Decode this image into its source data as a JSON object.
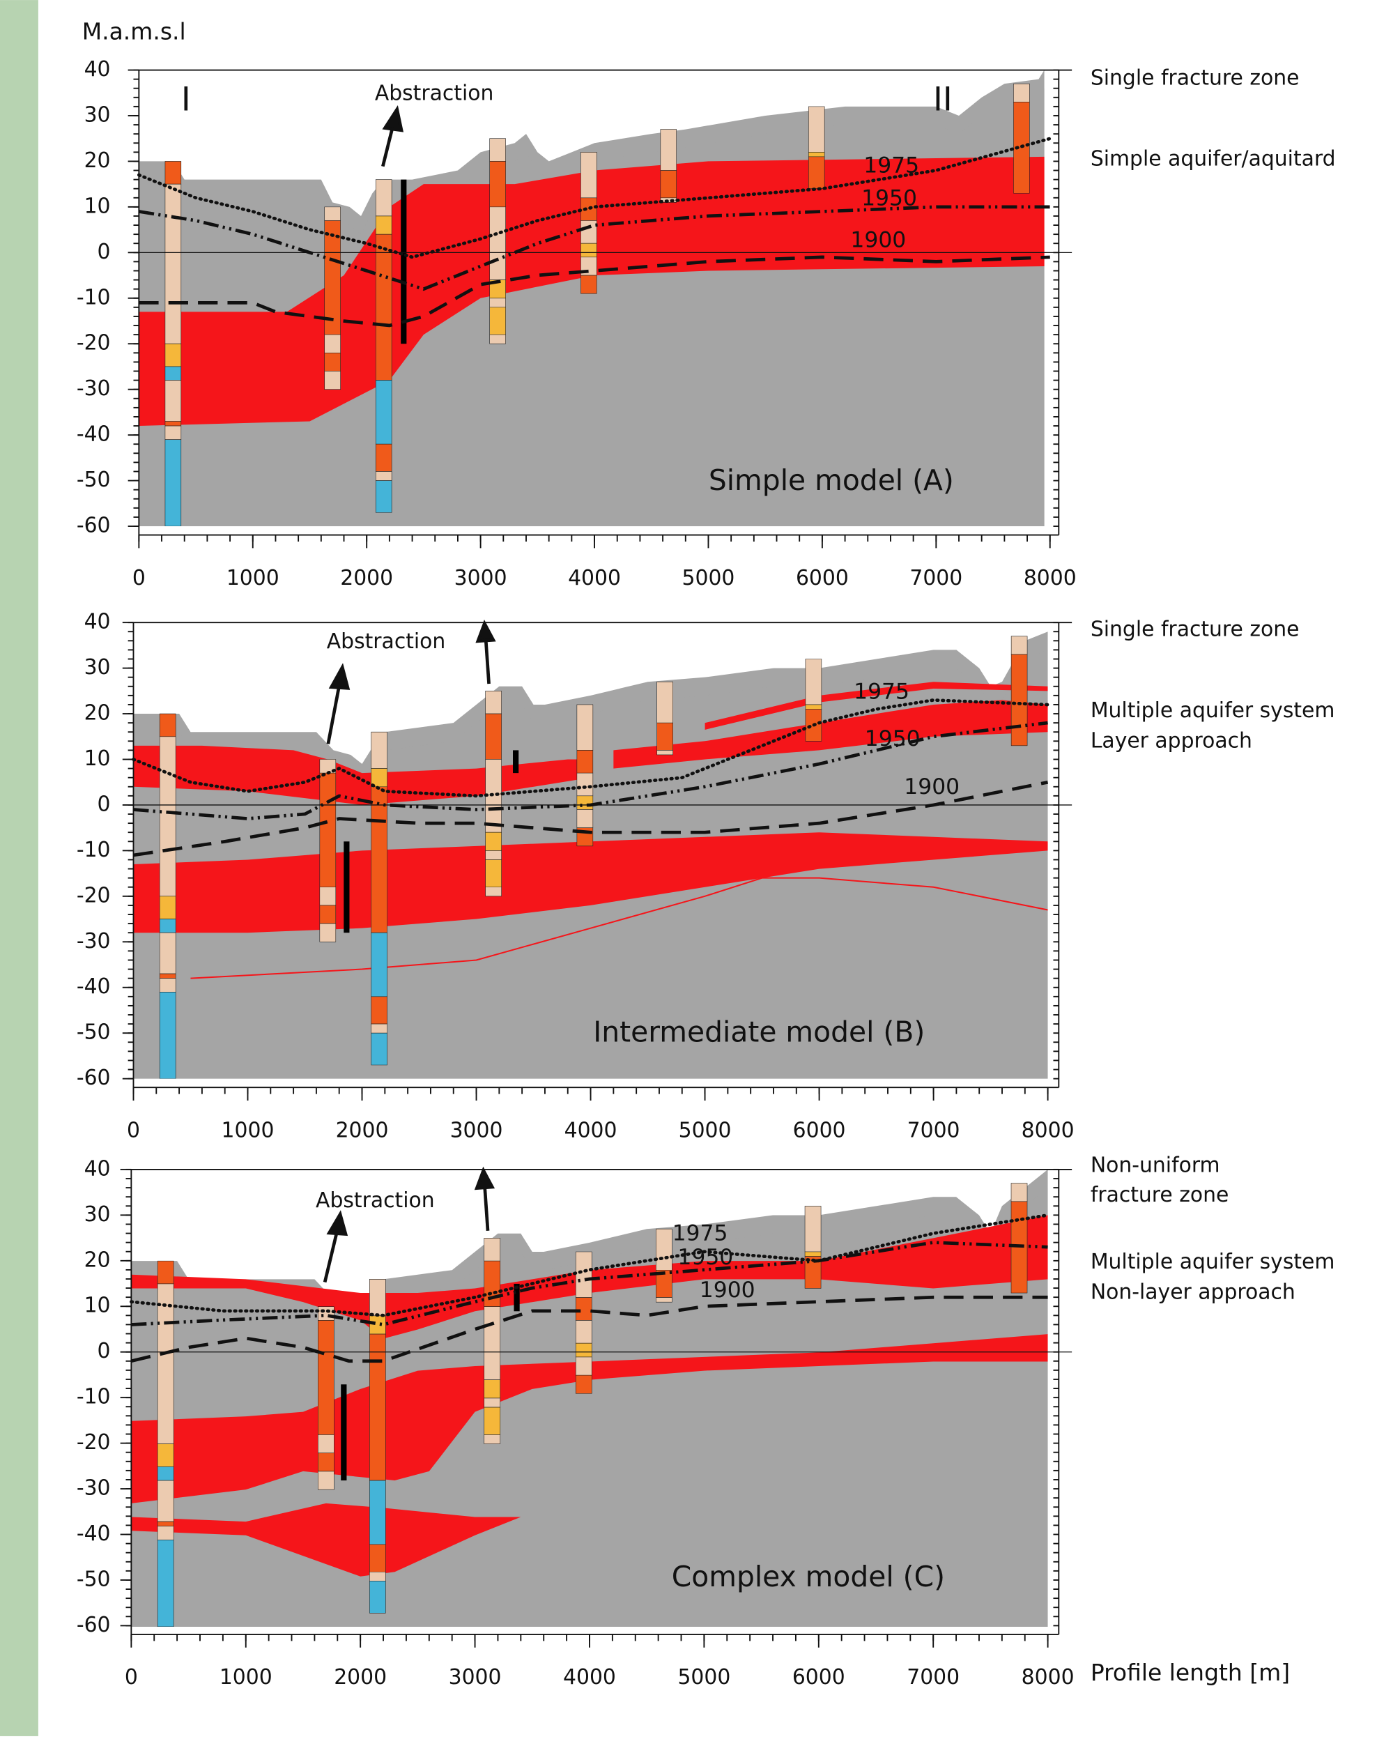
{
  "chart_data": [
    {
      "type": "line",
      "title": "Simple model (A)",
      "y_label": "M.a.m.s.l",
      "annotations": [
        "Abstraction",
        "I",
        "II"
      ],
      "side_labels": [
        "Single fracture zone",
        "Simple aquifer/aquitard"
      ],
      "xlim": [
        0,
        8000
      ],
      "ylim": [
        -60,
        40
      ],
      "xticks": [
        0,
        1000,
        2000,
        3000,
        4000,
        5000,
        6000,
        7000,
        8000
      ],
      "yticks": [
        -60,
        -50,
        -40,
        -30,
        -20,
        -10,
        0,
        10,
        20,
        30,
        40
      ],
      "series": [
        {
          "name": "1975",
          "color": "#111111",
          "dash": "dotted",
          "x": [
            0,
            500,
            1000,
            1500,
            2000,
            2400,
            3000,
            3500,
            4000,
            5000,
            6000,
            7000,
            8000
          ],
          "values": [
            17,
            12,
            9,
            5,
            2,
            -1,
            3,
            7,
            10,
            12,
            14,
            18,
            25
          ]
        },
        {
          "name": "1950",
          "color": "#111111",
          "dash": "dash-dot-dot",
          "x": [
            0,
            500,
            1000,
            1500,
            2000,
            2500,
            3000,
            3500,
            4000,
            5000,
            6000,
            7000,
            8000
          ],
          "values": [
            9,
            7,
            4,
            0,
            -4,
            -8,
            -3,
            2,
            6,
            8,
            9,
            10,
            10
          ]
        },
        {
          "name": "1900",
          "color": "#111111",
          "dash": "dashed",
          "x": [
            0,
            1000,
            1200,
            1800,
            2200,
            2500,
            3000,
            3500,
            4000,
            5000,
            6000,
            7000,
            8000
          ],
          "values": [
            -11,
            -11,
            -13,
            -15,
            -16,
            -14,
            -7,
            -5,
            -4,
            -2,
            -1,
            -2,
            -1
          ]
        }
      ]
    },
    {
      "type": "line",
      "title": "Intermediate model (B)",
      "annotations": [
        "Abstraction"
      ],
      "side_labels": [
        "Single fracture zone",
        "Multiple aquifer system",
        "Layer approach"
      ],
      "xlim": [
        0,
        8000
      ],
      "ylim": [
        -60,
        40
      ],
      "xticks": [
        0,
        1000,
        2000,
        3000,
        4000,
        5000,
        6000,
        7000,
        8000
      ],
      "yticks": [
        -60,
        -50,
        -40,
        -30,
        -20,
        -10,
        0,
        10,
        20,
        30,
        40
      ],
      "series": [
        {
          "name": "1975",
          "color": "#111111",
          "dash": "dotted",
          "x": [
            0,
            500,
            1000,
            1500,
            1800,
            2200,
            3000,
            4000,
            4800,
            5500,
            6000,
            6500,
            7000,
            8000
          ],
          "values": [
            10,
            5,
            3,
            5,
            8,
            3,
            2,
            4,
            6,
            13,
            18,
            21,
            23,
            22
          ]
        },
        {
          "name": "1950",
          "color": "#111111",
          "dash": "dash-dot-dot",
          "x": [
            0,
            500,
            1000,
            1500,
            1800,
            2200,
            3000,
            4000,
            5000,
            6000,
            7000,
            8000
          ],
          "values": [
            -1,
            -2,
            -3,
            -2,
            2,
            0,
            -1,
            0,
            4,
            9,
            15,
            18
          ]
        },
        {
          "name": "1900",
          "color": "#111111",
          "dash": "dashed",
          "x": [
            0,
            800,
            1500,
            1800,
            2500,
            3000,
            4000,
            5000,
            6000,
            7000,
            8000
          ],
          "values": [
            -11,
            -8,
            -5,
            -3,
            -4,
            -4,
            -6,
            -6,
            -4,
            0,
            5
          ]
        }
      ]
    },
    {
      "type": "line",
      "title": "Complex model (C)",
      "annotations": [
        "Abstraction"
      ],
      "x_label": "Profile length [m]",
      "side_labels": [
        "Non-uniform",
        "fracture zone",
        "Multiple aquifer system",
        "Non-layer approach"
      ],
      "xlim": [
        0,
        8000
      ],
      "ylim": [
        -60,
        40
      ],
      "xticks": [
        0,
        1000,
        2000,
        3000,
        4000,
        5000,
        6000,
        7000,
        8000
      ],
      "yticks": [
        -60,
        -50,
        -40,
        -30,
        -20,
        -10,
        0,
        10,
        20,
        30,
        40
      ],
      "series": [
        {
          "name": "1975",
          "color": "#111111",
          "dash": "dotted",
          "x": [
            0,
            800,
            1700,
            2200,
            3000,
            3500,
            4000,
            5000,
            6000,
            7000,
            8000
          ],
          "values": [
            11,
            9,
            9,
            8,
            12,
            15,
            18,
            22,
            20,
            26,
            30
          ]
        },
        {
          "name": "1950",
          "color": "#111111",
          "dash": "dash-dot-dot",
          "x": [
            0,
            800,
            1700,
            2200,
            3000,
            3500,
            4000,
            5000,
            6000,
            7000,
            8000
          ],
          "values": [
            6,
            7,
            8,
            6,
            11,
            14,
            16,
            18,
            20,
            24,
            23
          ]
        },
        {
          "name": "1900",
          "color": "#111111",
          "dash": "dashed",
          "x": [
            0,
            500,
            1000,
            1500,
            1900,
            2200,
            3000,
            3500,
            4000,
            4500,
            5000,
            6000,
            7000,
            8000
          ],
          "values": [
            -2,
            1,
            3,
            1,
            -2,
            -2,
            5,
            9,
            9,
            8,
            10,
            11,
            12,
            12
          ]
        }
      ]
    }
  ]
}
